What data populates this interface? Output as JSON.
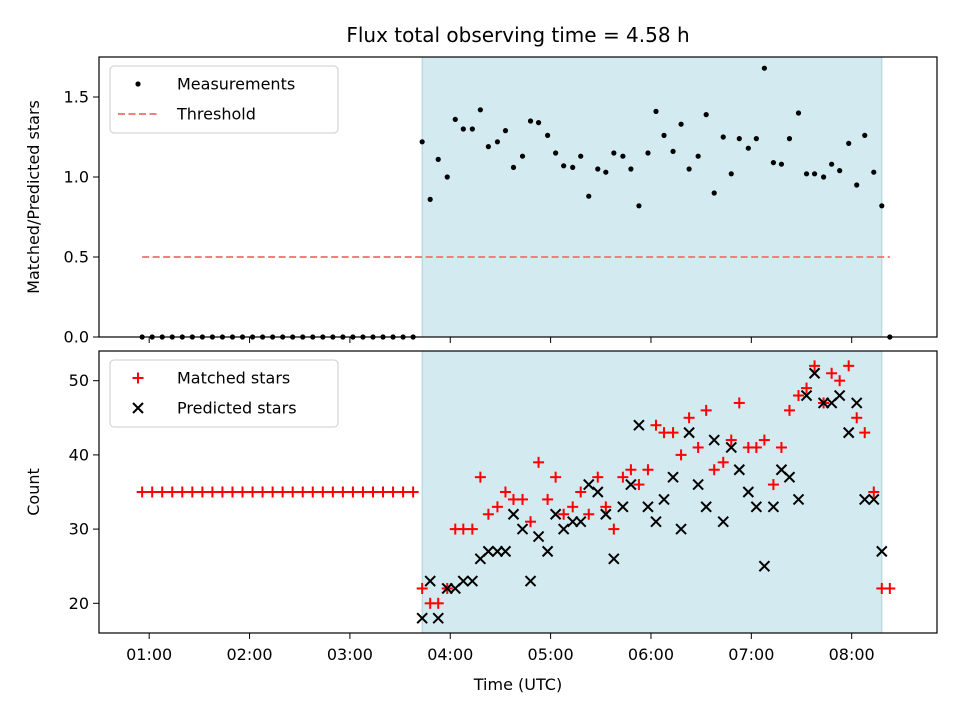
{
  "chart_data": {
    "title": "Flux total observing time = 4.58 h",
    "xlabel": "Time (UTC)",
    "x_ticks": [
      "01:00",
      "02:00",
      "03:00",
      "04:00",
      "05:00",
      "06:00",
      "07:00",
      "08:00"
    ],
    "xlim_hours": [
      0.5,
      8.85
    ],
    "shaded_span_hours": [
      3.72,
      8.3
    ],
    "shade_color": "#d3eaf0",
    "panels": [
      {
        "type": "scatter",
        "ylabel": "Matched/Predicted stars",
        "ylim": [
          0,
          1.75
        ],
        "y_ticks": [
          "0.0",
          "0.5",
          "1.0",
          "1.5"
        ],
        "legend_position": "top-left",
        "series": [
          {
            "name": "Measurements",
            "marker": "dot",
            "color": "#000000",
            "x": [
              0.93,
              1.03,
              1.13,
              1.23,
              1.33,
              1.43,
              1.53,
              1.63,
              1.73,
              1.83,
              1.93,
              2.03,
              2.13,
              2.23,
              2.33,
              2.43,
              2.53,
              2.63,
              2.73,
              2.83,
              2.93,
              3.03,
              3.13,
              3.23,
              3.33,
              3.43,
              3.53,
              3.63,
              3.72,
              3.8,
              3.88,
              3.97,
              4.05,
              4.13,
              4.22,
              4.3,
              4.38,
              4.47,
              4.55,
              4.63,
              4.72,
              4.8,
              4.88,
              4.97,
              5.05,
              5.13,
              5.22,
              5.3,
              5.38,
              5.47,
              5.55,
              5.63,
              5.72,
              5.8,
              5.88,
              5.97,
              6.05,
              6.13,
              6.22,
              6.3,
              6.38,
              6.47,
              6.55,
              6.63,
              6.72,
              6.8,
              6.88,
              6.97,
              7.05,
              7.13,
              7.22,
              7.3,
              7.38,
              7.47,
              7.55,
              7.63,
              7.72,
              7.8,
              7.88,
              7.97,
              8.05,
              8.13,
              8.22,
              8.3,
              8.38
            ],
            "y": [
              0,
              0,
              0,
              0,
              0,
              0,
              0,
              0,
              0,
              0,
              0,
              0,
              0,
              0,
              0,
              0,
              0,
              0,
              0,
              0,
              0,
              0,
              0,
              0,
              0,
              0,
              0,
              0,
              1.22,
              0.86,
              1.11,
              1.0,
              1.36,
              1.3,
              1.3,
              1.42,
              1.19,
              1.22,
              1.29,
              1.06,
              1.13,
              1.35,
              1.34,
              1.26,
              1.15,
              1.07,
              1.06,
              1.13,
              0.88,
              1.05,
              1.03,
              1.15,
              1.13,
              1.05,
              0.82,
              1.15,
              1.41,
              1.26,
              1.16,
              1.33,
              1.05,
              1.13,
              1.39,
              0.9,
              1.25,
              1.02,
              1.24,
              1.18,
              1.24,
              1.68,
              1.09,
              1.08,
              1.24,
              1.4,
              1.02,
              1.02,
              1.0,
              1.08,
              1.04,
              1.21,
              0.95,
              1.26,
              1.03,
              0.82,
              0
            ]
          },
          {
            "name": "Threshold",
            "type": "line",
            "style": "dashed",
            "color": "#f08080",
            "x": [
              0.93,
              8.38
            ],
            "y": [
              0.5,
              0.5
            ]
          }
        ]
      },
      {
        "type": "scatter",
        "ylabel": "Count",
        "ylim": [
          16,
          54
        ],
        "y_ticks": [
          "20",
          "30",
          "40",
          "50"
        ],
        "legend_position": "top-left",
        "series": [
          {
            "name": "Matched stars",
            "marker": "plus",
            "color": "#ff0000",
            "x": [
              0.93,
              1.03,
              1.13,
              1.23,
              1.33,
              1.43,
              1.53,
              1.63,
              1.73,
              1.83,
              1.93,
              2.03,
              2.13,
              2.23,
              2.33,
              2.43,
              2.53,
              2.63,
              2.73,
              2.83,
              2.93,
              3.03,
              3.13,
              3.23,
              3.33,
              3.43,
              3.53,
              3.63,
              3.72,
              3.8,
              3.88,
              3.97,
              4.05,
              4.13,
              4.22,
              4.3,
              4.38,
              4.47,
              4.55,
              4.63,
              4.72,
              4.8,
              4.88,
              4.97,
              5.05,
              5.13,
              5.22,
              5.3,
              5.38,
              5.47,
              5.55,
              5.63,
              5.72,
              5.8,
              5.88,
              5.97,
              6.05,
              6.13,
              6.22,
              6.3,
              6.38,
              6.47,
              6.55,
              6.63,
              6.72,
              6.8,
              6.88,
              6.97,
              7.05,
              7.13,
              7.22,
              7.3,
              7.38,
              7.47,
              7.55,
              7.63,
              7.72,
              7.8,
              7.88,
              7.97,
              8.05,
              8.13,
              8.22,
              8.3,
              8.38
            ],
            "y": [
              35,
              35,
              35,
              35,
              35,
              35,
              35,
              35,
              35,
              35,
              35,
              35,
              35,
              35,
              35,
              35,
              35,
              35,
              35,
              35,
              35,
              35,
              35,
              35,
              35,
              35,
              35,
              35,
              22,
              20,
              20,
              22,
              30,
              30,
              30,
              37,
              32,
              33,
              35,
              34,
              34,
              31,
              39,
              34,
              37,
              32,
              33,
              35,
              32,
              37,
              33,
              30,
              37,
              38,
              36,
              38,
              44,
              43,
              43,
              40,
              45,
              41,
              46,
              38,
              39,
              42,
              47,
              41,
              41,
              42,
              36,
              41,
              46,
              48,
              49,
              52,
              47,
              51,
              50,
              52,
              45,
              43,
              35,
              22,
              22
            ]
          },
          {
            "name": "Predicted stars",
            "marker": "x",
            "color": "#000000",
            "x": [
              3.72,
              3.8,
              3.88,
              3.97,
              4.05,
              4.13,
              4.22,
              4.3,
              4.38,
              4.47,
              4.55,
              4.63,
              4.72,
              4.8,
              4.88,
              4.97,
              5.05,
              5.13,
              5.22,
              5.3,
              5.38,
              5.47,
              5.55,
              5.63,
              5.72,
              5.8,
              5.88,
              5.97,
              6.05,
              6.13,
              6.22,
              6.3,
              6.38,
              6.47,
              6.55,
              6.63,
              6.72,
              6.8,
              6.88,
              6.97,
              7.05,
              7.13,
              7.22,
              7.3,
              7.38,
              7.47,
              7.55,
              7.63,
              7.72,
              7.8,
              7.88,
              7.97,
              8.05,
              8.13,
              8.22,
              8.3
            ],
            "y": [
              18,
              23,
              18,
              22,
              22,
              23,
              23,
              26,
              27,
              27,
              27,
              32,
              30,
              23,
              29,
              27,
              32,
              30,
              31,
              31,
              36,
              35,
              32,
              26,
              33,
              36,
              44,
              33,
              31,
              34,
              37,
              30,
              43,
              36,
              33,
              42,
              31,
              41,
              38,
              35,
              33,
              25,
              33,
              38,
              37,
              34,
              48,
              51,
              47,
              47,
              48,
              43,
              47,
              34,
              34,
              27
            ]
          }
        ]
      }
    ]
  }
}
